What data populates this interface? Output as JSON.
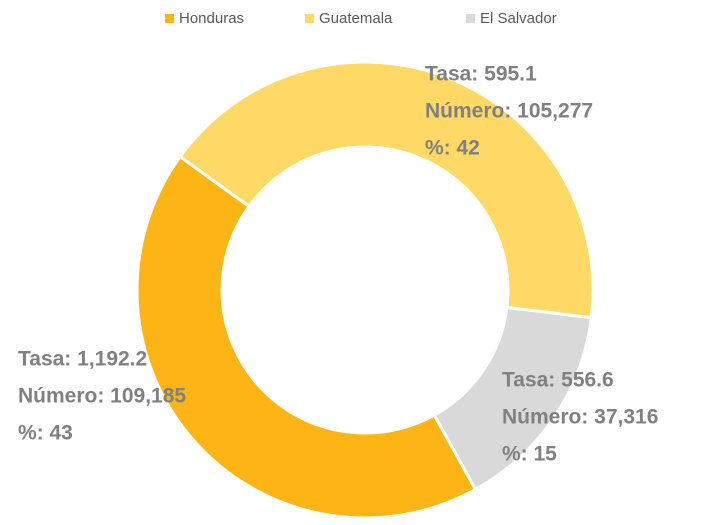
{
  "chart_data": {
    "type": "donut",
    "categories": [
      "Honduras",
      "Guatemala",
      "El Salvador"
    ],
    "series": [
      {
        "name": "%",
        "colors": [
          "#fdb515",
          "#ffd966",
          "#d9d9d9"
        ],
        "values": [
          43,
          42,
          15
        ]
      }
    ],
    "value_labels": [
      [
        "Tasa: 1,192.2",
        "Número: 109,185",
        "%: 43"
      ],
      [
        "Tasa: 595.1",
        "Número: 105,277",
        "%: 42"
      ],
      [
        "Tasa: 556.6",
        "Número: 37,316",
        "%: 15"
      ]
    ],
    "legend": "top"
  }
}
